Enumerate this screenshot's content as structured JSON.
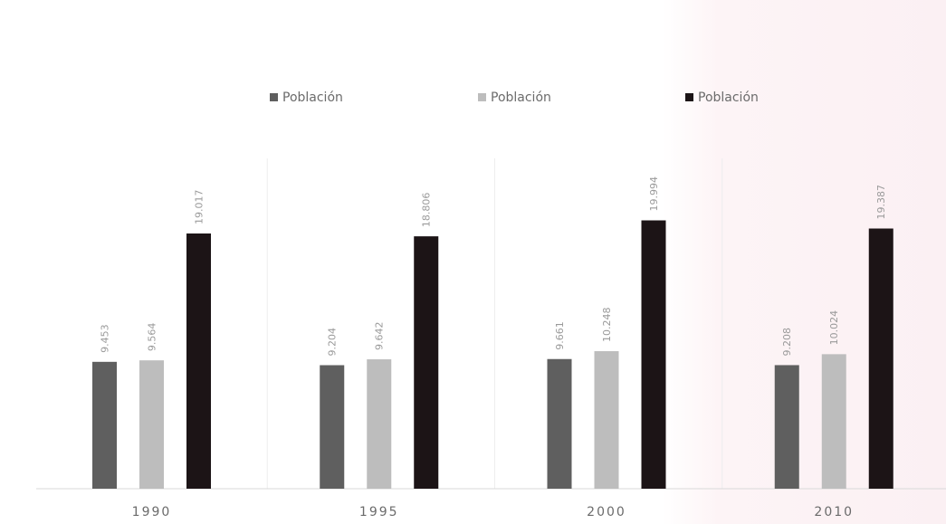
{
  "chart_data": {
    "type": "bar",
    "categories": [
      "1990",
      "1995",
      "2000",
      "2010"
    ],
    "series": [
      {
        "name": "Población",
        "values": [
          9453,
          9204,
          9661,
          9208
        ],
        "labels": [
          "9.453",
          "9.204",
          "9.661",
          "9.208"
        ],
        "color": "#5f5f5f"
      },
      {
        "name": "Población",
        "values": [
          9564,
          9642,
          10248,
          10024
        ],
        "labels": [
          "9.564",
          "9.642",
          "10.248",
          "10.024"
        ],
        "color": "#bdbdbd"
      },
      {
        "name": "Población",
        "values": [
          19017,
          18806,
          19994,
          19387
        ],
        "labels": [
          "19.017",
          "18.806",
          "19.994",
          "19.387"
        ],
        "color": "#1c1416"
      }
    ],
    "title": "",
    "xlabel": "",
    "ylabel": "",
    "ylim": [
      0,
      24000
    ],
    "grid": false,
    "legend_position": "top"
  }
}
